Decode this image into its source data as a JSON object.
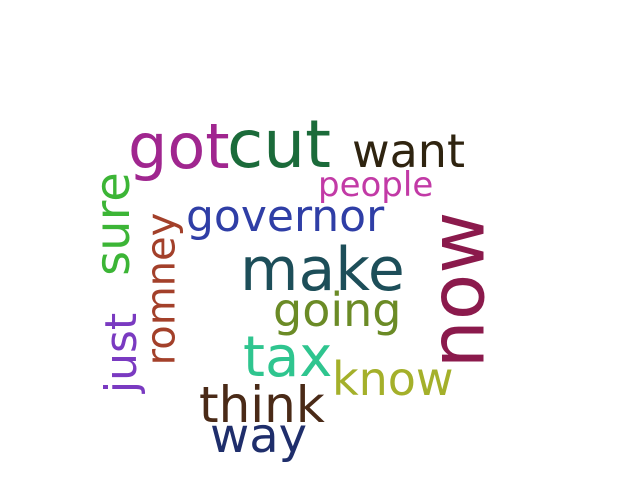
{
  "words": [
    {
      "text": "got",
      "color": "#a0268f"
    },
    {
      "text": "cut",
      "color": "#1b6b3a"
    },
    {
      "text": "want",
      "color": "#2f2410"
    },
    {
      "text": "people",
      "color": "#c23aa6"
    },
    {
      "text": "sure",
      "color": "#3cb536"
    },
    {
      "text": "romney",
      "color": "#a3402a"
    },
    {
      "text": "governor",
      "color": "#2f3ea6"
    },
    {
      "text": "now",
      "color": "#8b1a4c"
    },
    {
      "text": "make",
      "color": "#1d4e59"
    },
    {
      "text": "going",
      "color": "#6b8b26"
    },
    {
      "text": "just",
      "color": "#7a3ac1"
    },
    {
      "text": "tax",
      "color": "#2fc58f"
    },
    {
      "text": "know",
      "color": "#a4b02a"
    },
    {
      "text": "think",
      "color": "#4a2a17"
    },
    {
      "text": "way",
      "color": "#1f2e6b"
    }
  ]
}
